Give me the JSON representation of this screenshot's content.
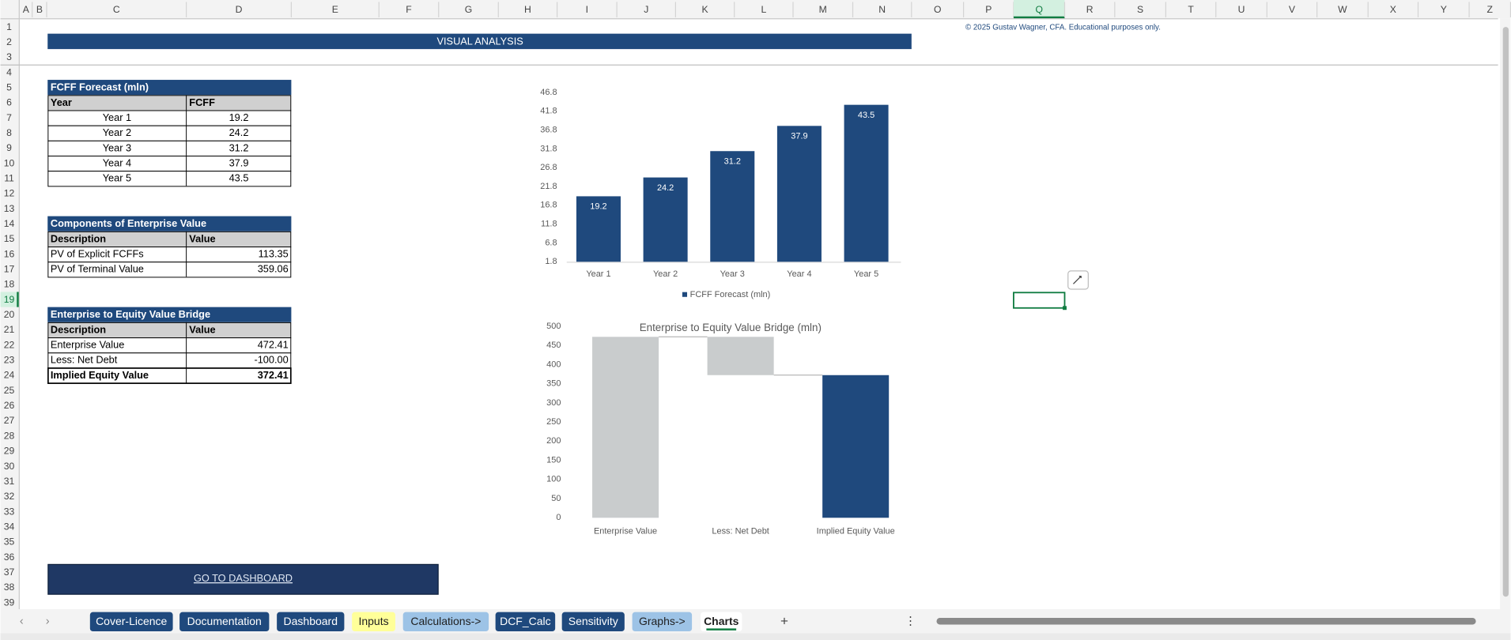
{
  "column_headers": [
    "A",
    "B",
    "C",
    "D",
    "E",
    "F",
    "G",
    "H",
    "I",
    "J",
    "K",
    "L",
    "M",
    "N",
    "O",
    "P",
    "Q",
    "R",
    "S",
    "T",
    "U",
    "V",
    "W",
    "X",
    "Y",
    "Z"
  ],
  "row_headers": [
    1,
    2,
    3,
    4,
    5,
    6,
    7,
    8,
    9,
    10,
    11,
    12,
    13,
    14,
    15,
    16,
    17,
    18,
    19,
    20,
    21,
    22,
    23,
    24,
    25,
    26,
    27,
    28,
    29,
    30,
    31,
    32,
    33,
    34,
    35,
    36,
    37,
    38,
    39
  ],
  "banner": "VISUAL ANALYSIS",
  "copyright": "© 2025 Gustav Wagner, CFA. Educational purposes only.",
  "tables": [
    {
      "title": "FCFF Forecast (mln)",
      "header": [
        "Year",
        "FCFF"
      ],
      "rows": [
        [
          "Year 1",
          "19.2"
        ],
        [
          "Year 2",
          "24.2"
        ],
        [
          "Year 3",
          "31.2"
        ],
        [
          "Year 4",
          "37.9"
        ],
        [
          "Year 5",
          "43.5"
        ]
      ]
    },
    {
      "title": "Components of Enterprise Value",
      "header": [
        "Description",
        "Value"
      ],
      "rows": [
        [
          "PV of Explicit FCFFs",
          "113.35"
        ],
        [
          "PV of Terminal Value",
          "359.06"
        ]
      ]
    },
    {
      "title": "Enterprise to Equity Value Bridge",
      "header": [
        "Description",
        "Value"
      ],
      "rows": [
        [
          "Enterprise Value",
          "472.41"
        ],
        [
          "Less: Net Debt",
          "-100.00"
        ],
        [
          "Implied Equity Value",
          "372.41"
        ]
      ]
    }
  ],
  "chart_data": [
    {
      "type": "bar",
      "categories": [
        "Year 1",
        "Year 2",
        "Year 3",
        "Year 4",
        "Year 5"
      ],
      "series": [
        {
          "name": "FCFF Forecast (mln)",
          "color": "#1f497d",
          "values": [
            19.2,
            24.2,
            31.2,
            37.9,
            43.5
          ]
        }
      ],
      "ylim": [
        1.8,
        46.8
      ],
      "yticks": [
        1.8,
        6.8,
        11.8,
        16.8,
        21.8,
        26.8,
        31.8,
        36.8,
        41.8,
        46.8
      ],
      "grid": false,
      "legend": "bottom"
    },
    {
      "type": "waterfall",
      "title": "Enterprise to Equity Value Bridge (mln)",
      "categories": [
        "Enterprise Value",
        "Less: Net Debt",
        "Implied Equity Value"
      ],
      "values": [
        472.41,
        -100,
        372.41
      ],
      "colors": [
        "#c9cccd",
        "#c9cccd",
        "#1f497d"
      ],
      "ylim": [
        0,
        500
      ],
      "yticks": [
        0,
        50,
        100,
        150,
        200,
        250,
        300,
        350,
        400,
        450,
        500
      ],
      "grid": false
    }
  ],
  "button": "GO TO DASHBOARD",
  "sheet_tabs": [
    {
      "name": "Cover-Licence",
      "color": "#1f497d"
    },
    {
      "name": "Documentation",
      "color": "#1f497d"
    },
    {
      "name": "Dashboard",
      "color": "#1f497d"
    },
    {
      "name": "Inputs",
      "color": "#ffff99"
    },
    {
      "name": "Calculations->",
      "color": "#9dc3e6"
    },
    {
      "name": "DCF_Calc",
      "color": "#1f497d"
    },
    {
      "name": "Sensitivity",
      "color": "#1f497d"
    },
    {
      "name": "Graphs->",
      "color": "#9dc3e6"
    },
    {
      "name": "Charts",
      "color": "#ffffff",
      "active": true
    }
  ]
}
